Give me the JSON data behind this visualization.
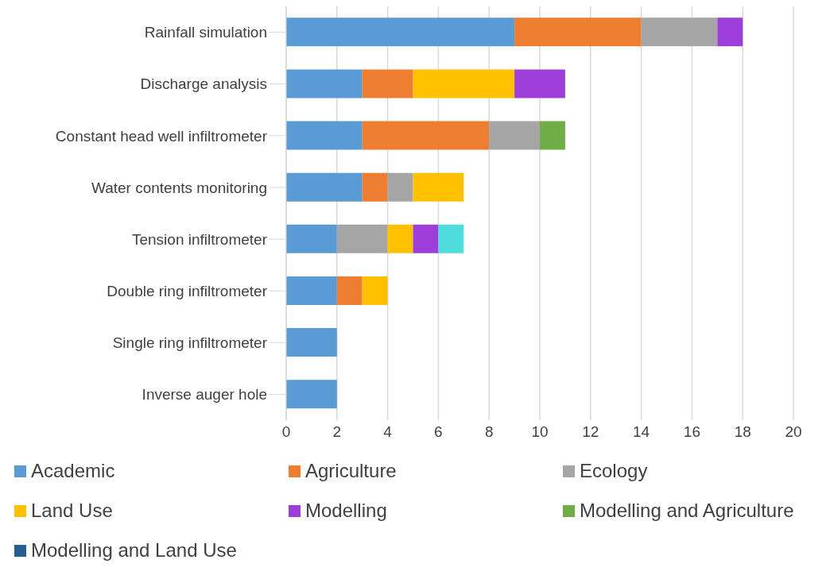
{
  "chart_data": {
    "type": "bar",
    "orientation": "horizontal",
    "stacked": true,
    "categories": [
      "Rainfall simulation",
      "Discharge analysis",
      "Constant head well infiltrometer",
      "Water contents monitoring",
      "Tension infiltrometer",
      "Double ring infiltrometer",
      "Single ring infiltrometer",
      "Inverse auger hole"
    ],
    "series": [
      {
        "name": "Academic",
        "color": "#5b9bd5",
        "values": [
          9,
          3,
          3,
          3,
          2,
          2,
          2,
          2
        ]
      },
      {
        "name": "Agriculture",
        "color": "#ed7d31",
        "values": [
          5,
          2,
          5,
          1,
          null,
          1,
          null,
          null
        ]
      },
      {
        "name": "Ecology",
        "color": "#a5a5a5",
        "values": [
          3,
          null,
          2,
          1,
          2,
          null,
          null,
          null
        ]
      },
      {
        "name": "Land Use",
        "color": "#ffc000",
        "values": [
          null,
          4,
          null,
          2,
          1,
          1,
          null,
          null
        ]
      },
      {
        "name": "Modelling",
        "color": "#9e3ed8",
        "values": [
          1,
          2,
          null,
          null,
          1,
          null,
          null,
          null
        ]
      },
      {
        "name": "Modelling and Agriculture",
        "color": "#70ad47",
        "values": [
          null,
          null,
          1,
          null,
          null,
          null,
          null,
          null
        ]
      },
      {
        "name": "Modelling and Land Use",
        "color": "#255e91",
        "values": [
          null,
          null,
          null,
          null,
          null,
          null,
          null,
          null
        ]
      },
      {
        "color": "#4fdcdc",
        "values": [
          null,
          null,
          null,
          null,
          1,
          null,
          null,
          null
        ]
      }
    ],
    "xlim": [
      0,
      20
    ],
    "xticks": [
      0,
      2,
      4,
      6,
      8,
      10,
      12,
      14,
      16,
      18,
      20
    ],
    "grid": "x",
    "legend": "bottom"
  }
}
